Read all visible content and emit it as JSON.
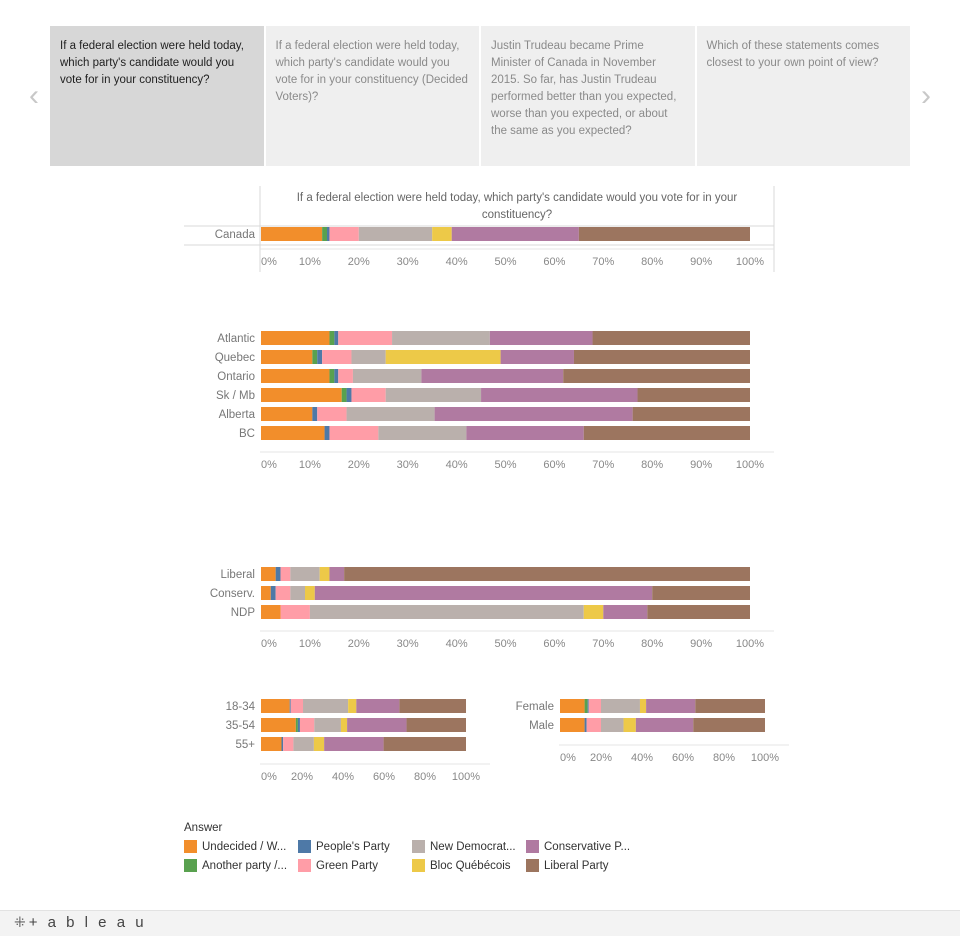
{
  "story": {
    "points": [
      "If a federal election were held today, which party's candidate would you vote for in your constituency?",
      "If a federal election were held today, which party's candidate would you vote for in your constituency (Decided Voters)?",
      "Justin Trudeau became Prime Minister of Canada in November 2015. So far, has Justin Trudeau performed better than you expected, worse than you expected, or about the same as you expected?",
      "Which of these statements comes closest to your own point of view?"
    ],
    "prev_arrow": "‹",
    "next_arrow": "›"
  },
  "legend": {
    "title": "Answer",
    "items": [
      {
        "label": "Undecided / W...",
        "color": "#f28e2b"
      },
      {
        "label": "People's Party",
        "color": "#4e79a7"
      },
      {
        "label": "New Democrat...",
        "color": "#bab0ac"
      },
      {
        "label": "Conservative P...",
        "color": "#b07aa1"
      },
      {
        "label": "Another party /...",
        "color": "#59a14f"
      },
      {
        "label": "Green Party",
        "color": "#ff9da7"
      },
      {
        "label": "Bloc Québécois",
        "color": "#edc948"
      },
      {
        "label": "Liberal Party",
        "color": "#9c755f"
      }
    ]
  },
  "footer": {
    "brand": "+ a b l e a u",
    "brand_icon": "⁜"
  },
  "chart_data": [
    {
      "type": "bar",
      "orientation": "horizontal",
      "stacked": true,
      "title": "If a federal election were held today, which party's candidate would you vote for in your constituency?",
      "segments": [
        "Undecided / W...",
        "Another party /...",
        "People's Party",
        "Green Party",
        "New Democrat...",
        "Bloc Québécois",
        "Conservative P...",
        "Liberal Party"
      ],
      "colors": [
        "#f28e2b",
        "#59a14f",
        "#4e79a7",
        "#ff9da7",
        "#bab0ac",
        "#edc948",
        "#b07aa1",
        "#9c755f"
      ],
      "categories": [
        "Canada"
      ],
      "rows": [
        [
          12.5,
          1.0,
          0.5,
          6.0,
          15.0,
          4.0,
          26.0,
          35.0
        ]
      ],
      "xlim": [
        0,
        100
      ],
      "xticks": [
        "0%",
        "10%",
        "20%",
        "30%",
        "40%",
        "50%",
        "60%",
        "70%",
        "80%",
        "90%",
        "100%"
      ]
    },
    {
      "type": "bar",
      "orientation": "horizontal",
      "stacked": true,
      "segments": [
        "Undecided / W...",
        "Another party /...",
        "People's Party",
        "Green Party",
        "New Democrat...",
        "Bloc Québécois",
        "Conservative P...",
        "Liberal Party"
      ],
      "colors": [
        "#f28e2b",
        "#59a14f",
        "#4e79a7",
        "#ff9da7",
        "#bab0ac",
        "#edc948",
        "#b07aa1",
        "#9c755f"
      ],
      "categories": [
        "Atlantic",
        "Quebec",
        "Ontario",
        "Sk / Mb",
        "Alberta",
        "BC"
      ],
      "rows": [
        [
          14.0,
          1.0,
          0.8,
          11.0,
          20.0,
          0,
          21.0,
          32.2
        ],
        [
          10.5,
          1.0,
          1.0,
          6.0,
          7.0,
          23.5,
          15.0,
          36.0
        ],
        [
          14.0,
          1.0,
          0.8,
          3.0,
          14.0,
          0,
          29.0,
          38.2
        ],
        [
          16.5,
          1.0,
          1.0,
          7.0,
          19.5,
          0,
          32.0,
          23.0
        ],
        [
          10.5,
          0,
          1.0,
          6.0,
          18.0,
          0,
          40.5,
          24.0
        ],
        [
          13.0,
          0,
          1.0,
          10.0,
          18.0,
          0,
          24.0,
          34.0
        ]
      ],
      "xlim": [
        0,
        100
      ],
      "xticks": [
        "0%",
        "10%",
        "20%",
        "30%",
        "40%",
        "50%",
        "60%",
        "70%",
        "80%",
        "90%",
        "100%"
      ]
    },
    {
      "type": "bar",
      "orientation": "horizontal",
      "stacked": true,
      "segments": [
        "Undecided / W...",
        "Another party /...",
        "People's Party",
        "Green Party",
        "New Democrat...",
        "Bloc Québécois",
        "Conservative P...",
        "Liberal Party"
      ],
      "colors": [
        "#f28e2b",
        "#59a14f",
        "#4e79a7",
        "#ff9da7",
        "#bab0ac",
        "#edc948",
        "#b07aa1",
        "#9c755f"
      ],
      "categories": [
        "Liberal",
        "Conserv.",
        "NDP"
      ],
      "rows": [
        [
          3.0,
          0,
          1.0,
          2.0,
          6.0,
          2.0,
          3.0,
          83.0
        ],
        [
          2.0,
          0,
          1.0,
          3.0,
          3.0,
          2.0,
          69.0,
          20.0
        ],
        [
          4.0,
          0,
          0,
          6.0,
          56.0,
          4.0,
          9.0,
          21.0
        ]
      ],
      "xlim": [
        0,
        100
      ],
      "xticks": [
        "0%",
        "10%",
        "20%",
        "30%",
        "40%",
        "50%",
        "60%",
        "70%",
        "80%",
        "90%",
        "100%"
      ]
    },
    {
      "type": "bar",
      "orientation": "horizontal",
      "stacked": true,
      "segments": [
        "Undecided / W...",
        "Another party /...",
        "People's Party",
        "Green Party",
        "New Democrat...",
        "Bloc Québécois",
        "Conservative P...",
        "Liberal Party"
      ],
      "colors": [
        "#f28e2b",
        "#59a14f",
        "#4e79a7",
        "#ff9da7",
        "#bab0ac",
        "#edc948",
        "#b07aa1",
        "#9c755f"
      ],
      "categories": [
        "18-34",
        "35-54",
        "55+"
      ],
      "rows": [
        [
          14.0,
          0,
          0.5,
          6.0,
          22.0,
          4.0,
          21.0,
          32.5
        ],
        [
          17.0,
          1.0,
          1.0,
          7.0,
          13.0,
          3.0,
          29.0,
          29.0
        ],
        [
          10.0,
          0,
          0.8,
          5.0,
          10.0,
          5.0,
          29.0,
          40.2
        ]
      ],
      "xlim": [
        0,
        100
      ],
      "xticks": [
        "0%",
        "20%",
        "40%",
        "60%",
        "80%",
        "100%"
      ]
    },
    {
      "type": "bar",
      "orientation": "horizontal",
      "stacked": true,
      "segments": [
        "Undecided / W...",
        "Another party /...",
        "People's Party",
        "Green Party",
        "New Democrat...",
        "Bloc Québécois",
        "Conservative P...",
        "Liberal Party"
      ],
      "colors": [
        "#f28e2b",
        "#59a14f",
        "#4e79a7",
        "#ff9da7",
        "#bab0ac",
        "#edc948",
        "#b07aa1",
        "#9c755f"
      ],
      "categories": [
        "Female",
        "Male"
      ],
      "rows": [
        [
          12.0,
          1.5,
          0.5,
          6.0,
          19.0,
          3.0,
          24.0,
          34.0
        ],
        [
          12.0,
          0,
          1.0,
          7.0,
          11.0,
          6.0,
          28.0,
          35.0
        ]
      ],
      "xlim": [
        0,
        100
      ],
      "xticks": [
        "0%",
        "20%",
        "40%",
        "60%",
        "80%",
        "100%"
      ]
    }
  ]
}
